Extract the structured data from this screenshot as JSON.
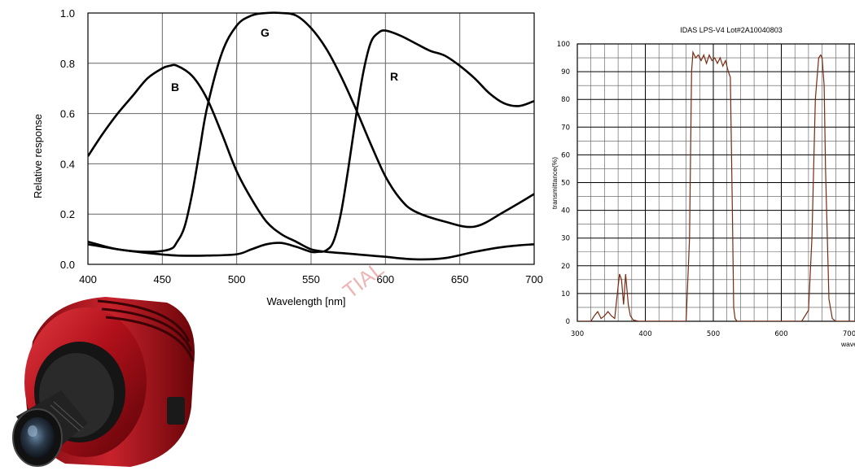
{
  "chart_data": [
    {
      "type": "line",
      "title": "",
      "xlabel": "Wavelength [nm]",
      "ylabel": "Relative response",
      "xlim": [
        400,
        700
      ],
      "ylim": [
        0,
        1.0
      ],
      "x_ticks": [
        "400",
        "450",
        "500",
        "550",
        "600",
        "650",
        "700"
      ],
      "y_ticks": [
        "0.0",
        "0.2",
        "0.4",
        "0.6",
        "0.8",
        "1.0"
      ],
      "grid": true,
      "series": [
        {
          "name": "B",
          "x": [
            400,
            410,
            420,
            430,
            440,
            450,
            455,
            460,
            470,
            480,
            490,
            500,
            510,
            520,
            530,
            540,
            550,
            560,
            570,
            580,
            590,
            600,
            620,
            640,
            660,
            680,
            700
          ],
          "y": [
            0.43,
            0.52,
            0.6,
            0.67,
            0.74,
            0.78,
            0.79,
            0.79,
            0.75,
            0.66,
            0.52,
            0.37,
            0.26,
            0.17,
            0.12,
            0.09,
            0.06,
            0.05,
            0.045,
            0.04,
            0.035,
            0.03,
            0.02,
            0.025,
            0.05,
            0.07,
            0.08
          ]
        },
        {
          "name": "G",
          "x": [
            400,
            420,
            440,
            455,
            460,
            465,
            470,
            475,
            480,
            490,
            500,
            510,
            520,
            530,
            540,
            550,
            560,
            570,
            580,
            590,
            600,
            610,
            620,
            640,
            660,
            680,
            700
          ],
          "y": [
            0.09,
            0.06,
            0.05,
            0.06,
            0.09,
            0.15,
            0.28,
            0.45,
            0.62,
            0.84,
            0.95,
            0.99,
            1.0,
            1.0,
            0.99,
            0.94,
            0.86,
            0.75,
            0.62,
            0.48,
            0.35,
            0.26,
            0.21,
            0.17,
            0.15,
            0.21,
            0.28
          ]
        },
        {
          "name": "R",
          "x": [
            400,
            420,
            440,
            460,
            480,
            500,
            510,
            520,
            530,
            540,
            550,
            555,
            560,
            565,
            570,
            575,
            580,
            585,
            590,
            595,
            600,
            610,
            620,
            630,
            640,
            650,
            660,
            670,
            680,
            690,
            700
          ],
          "y": [
            0.08,
            0.06,
            0.045,
            0.035,
            0.035,
            0.04,
            0.06,
            0.08,
            0.085,
            0.07,
            0.05,
            0.05,
            0.055,
            0.09,
            0.2,
            0.38,
            0.58,
            0.76,
            0.88,
            0.92,
            0.93,
            0.91,
            0.88,
            0.85,
            0.83,
            0.79,
            0.74,
            0.68,
            0.64,
            0.63,
            0.65
          ]
        }
      ]
    },
    {
      "type": "line",
      "title": "IDAS LPS-V4 Lot#2A10040803",
      "xlabel": "wavelength",
      "ylabel": "transmittance(%)",
      "xlim": [
        300,
        750
      ],
      "ylim": [
        0,
        100
      ],
      "x_ticks": [
        "300",
        "400",
        "500",
        "600",
        "700"
      ],
      "y_ticks": [
        "0",
        "10",
        "20",
        "30",
        "40",
        "50",
        "60",
        "70",
        "80",
        "90",
        "100"
      ],
      "grid": true,
      "series": [
        {
          "name": "",
          "x": [
            300,
            320,
            325,
            330,
            335,
            340,
            345,
            350,
            355,
            358,
            362,
            365,
            368,
            371,
            375,
            378,
            382,
            390,
            400,
            420,
            440,
            460,
            465,
            468,
            470,
            474,
            478,
            482,
            486,
            490,
            494,
            498,
            502,
            506,
            510,
            514,
            518,
            522,
            525,
            528,
            530,
            532,
            535,
            540,
            560,
            600,
            630,
            640,
            645,
            650,
            655,
            658,
            660,
            663,
            665,
            670,
            675,
            680,
            700,
            750
          ],
          "y": [
            0,
            0,
            2,
            3.5,
            1,
            2,
            3.5,
            2,
            1,
            8,
            17,
            15,
            6,
            17,
            6,
            2,
            0.5,
            0,
            0,
            0,
            0,
            0,
            30,
            90,
            97,
            95,
            96,
            94,
            96,
            93,
            96,
            94,
            95,
            93,
            95,
            92,
            94,
            90,
            88,
            40,
            5,
            1,
            0,
            0,
            0,
            0,
            0,
            4,
            30,
            80,
            95,
            96,
            95,
            85,
            55,
            8,
            1,
            0,
            0,
            0
          ]
        }
      ]
    }
  ],
  "curve_labels": [
    "B",
    "G",
    "R"
  ],
  "watermark_text": "TIAL",
  "product_photo": "red-astronomy-camera-icon",
  "colors": {
    "camera_red": "#b0101a",
    "filter_trace": "#7a2a10",
    "watermark": "#e07878"
  }
}
